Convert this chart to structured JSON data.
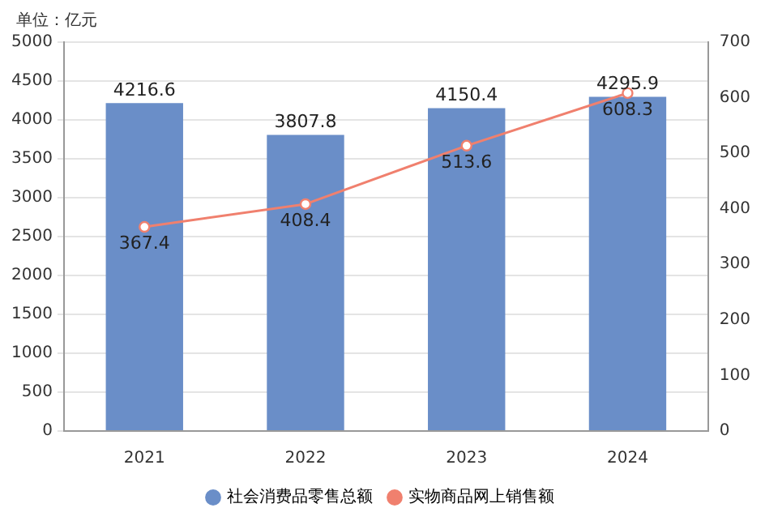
{
  "chart_data": {
    "type": "bar",
    "ylabel": "单位：亿元",
    "categories": [
      "2021",
      "2022",
      "2023",
      "2024"
    ],
    "series": [
      {
        "name": "社会消费品零售总额",
        "color": "#6a8ec8",
        "values": [
          4216.6,
          3807.8,
          4150.4,
          4295.9
        ]
      },
      {
        "name": "实物商品网上销售额",
        "type": "line",
        "axis": "y2",
        "color": "#f0806e",
        "values": [
          367.4,
          408.4,
          513.6,
          608.3
        ]
      }
    ],
    "ylim": [
      0,
      5000
    ],
    "yticks": [
      0,
      500,
      1000,
      1500,
      2000,
      2500,
      3000,
      3500,
      4000,
      4500,
      5000
    ],
    "y2lim": [
      0,
      700
    ],
    "y2ticks": [
      0,
      100,
      200,
      300,
      400,
      500,
      600,
      700
    ],
    "grid": "y",
    "legend": "bottom",
    "data_labels": true,
    "marker": "circle"
  }
}
